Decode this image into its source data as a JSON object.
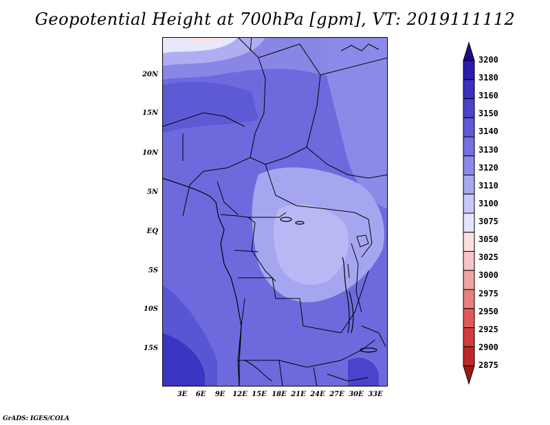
{
  "title": "Geopotential Height at 700hPa [gpm], VT: 2019111112",
  "footer": "GrADS: IGES/COLA",
  "map": {
    "lat_labels": [
      "20N",
      "15N",
      "10N",
      "5N",
      "EQ",
      "5S",
      "10S",
      "15S"
    ],
    "lon_labels": [
      "3E",
      "6E",
      "9E",
      "12E",
      "15E",
      "18E",
      "21E",
      "24E",
      "27E",
      "30E",
      "33E"
    ]
  },
  "colorbar": {
    "levels": [
      "3200",
      "3180",
      "3160",
      "3150",
      "3140",
      "3130",
      "3120",
      "3110",
      "3100",
      "3075",
      "3050",
      "3025",
      "3000",
      "2975",
      "2950",
      "2925",
      "2900",
      "2875"
    ],
    "colors": [
      "#1e0a8c",
      "#2a1cae",
      "#3a30c0",
      "#4a44cc",
      "#5e5ad8",
      "#7470e0",
      "#8c8ae8",
      "#a8a8f0",
      "#c8c8f8",
      "#e4e4fc",
      "#fce0e0",
      "#f8c4c4",
      "#f0a4a4",
      "#e88080",
      "#e05a5a",
      "#d43c3c",
      "#c02828",
      "#a01818"
    ]
  }
}
